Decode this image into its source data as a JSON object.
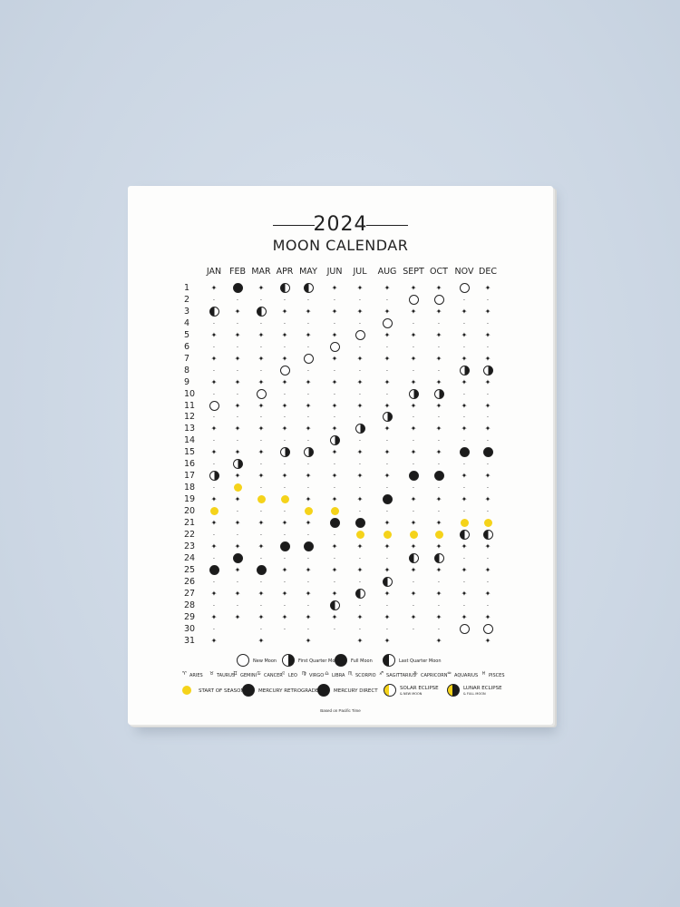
{
  "title": "2024",
  "subtitle": "MOON CALENDAR",
  "months": [
    "JAN",
    "FEB",
    "MAR",
    "APR",
    "MAY",
    "JUN",
    "JUL",
    "AUG",
    "SEPT",
    "OCT",
    "NOV",
    "DEC"
  ],
  "days": [
    "1",
    "2",
    "3",
    "4",
    "5",
    "6",
    "7",
    "8",
    "9",
    "10",
    "11",
    "12",
    "13",
    "14",
    "15",
    "16",
    "17",
    "18",
    "19",
    "20",
    "21",
    "22",
    "23",
    "24",
    "25",
    "26",
    "27",
    "28",
    "29",
    "30",
    "31"
  ],
  "phase_legend": [
    {
      "label": "New Moon",
      "phase": "new"
    },
    {
      "label": "First Quarter Moon",
      "phase": "fq"
    },
    {
      "label": "Full Moon",
      "phase": "full"
    },
    {
      "label": "Last Quarter Moon",
      "phase": "lq"
    }
  ],
  "zodiac_legend": [
    "ARIES",
    "TAURUS",
    "GEMINI",
    "CANCER",
    "LEO",
    "VIRGO",
    "LIBRA",
    "SCORPIO",
    "SAGITTARIUS",
    "CAPRICORN",
    "AQUARIUS",
    "PISCES"
  ],
  "zodiac_glyphs": [
    "♈",
    "♉",
    "♊",
    "♋",
    "♌",
    "♍",
    "♎",
    "♏",
    "♐",
    "♑",
    "♒",
    "♓"
  ],
  "event_legend": [
    {
      "label": "START OF SEASON"
    },
    {
      "label": "MERCURY RETROGRADE"
    },
    {
      "label": "MERCURY DIRECT"
    },
    {
      "label": "SOLAR ECLIPSE",
      "sub": "& NEW MOON"
    },
    {
      "label": "LUNAR ECLIPSE",
      "sub": "& FULL MOON"
    }
  ],
  "footnote": "Based on Pacific Time",
  "colors": {
    "accent": "#f5d31a",
    "ink": "#1b1b1b",
    "paper": "#fdfdfc",
    "wall": "#cfd9e6"
  },
  "events": [
    {
      "m": 0,
      "d": 3,
      "t": "lq"
    },
    {
      "m": 0,
      "d": 11,
      "t": "new"
    },
    {
      "m": 0,
      "d": 17,
      "t": "fq"
    },
    {
      "m": 0,
      "d": 25,
      "t": "full"
    },
    {
      "m": 1,
      "d": 1,
      "t": "full"
    },
    {
      "m": 1,
      "d": 16,
      "t": "fq"
    },
    {
      "m": 1,
      "d": 24,
      "t": "full"
    },
    {
      "m": 2,
      "d": 3,
      "t": "lq"
    },
    {
      "m": 2,
      "d": 10,
      "t": "new"
    },
    {
      "m": 2,
      "d": 25,
      "t": "full"
    },
    {
      "m": 3,
      "d": 1,
      "t": "lq"
    },
    {
      "m": 3,
      "d": 8,
      "t": "new"
    },
    {
      "m": 3,
      "d": 15,
      "t": "fq"
    },
    {
      "m": 3,
      "d": 23,
      "t": "full"
    },
    {
      "m": 4,
      "d": 1,
      "t": "lq"
    },
    {
      "m": 4,
      "d": 7,
      "t": "new"
    },
    {
      "m": 4,
      "d": 15,
      "t": "fq"
    },
    {
      "m": 4,
      "d": 23,
      "t": "full"
    },
    {
      "m": 5,
      "d": 6,
      "t": "new"
    },
    {
      "m": 5,
      "d": 14,
      "t": "fq"
    },
    {
      "m": 5,
      "d": 21,
      "t": "full"
    },
    {
      "m": 5,
      "d": 28,
      "t": "lq"
    },
    {
      "m": 6,
      "d": 5,
      "t": "new"
    },
    {
      "m": 6,
      "d": 13,
      "t": "fq"
    },
    {
      "m": 6,
      "d": 21,
      "t": "full"
    },
    {
      "m": 6,
      "d": 27,
      "t": "lq"
    },
    {
      "m": 7,
      "d": 4,
      "t": "new"
    },
    {
      "m": 7,
      "d": 12,
      "t": "fq"
    },
    {
      "m": 7,
      "d": 19,
      "t": "full"
    },
    {
      "m": 7,
      "d": 26,
      "t": "lq"
    },
    {
      "m": 8,
      "d": 2,
      "t": "new"
    },
    {
      "m": 8,
      "d": 10,
      "t": "fq"
    },
    {
      "m": 8,
      "d": 17,
      "t": "full"
    },
    {
      "m": 8,
      "d": 24,
      "t": "lq"
    },
    {
      "m": 9,
      "d": 2,
      "t": "new"
    },
    {
      "m": 9,
      "d": 10,
      "t": "fq"
    },
    {
      "m": 9,
      "d": 17,
      "t": "full"
    },
    {
      "m": 9,
      "d": 24,
      "t": "lq"
    },
    {
      "m": 10,
      "d": 1,
      "t": "new"
    },
    {
      "m": 10,
      "d": 8,
      "t": "fq"
    },
    {
      "m": 10,
      "d": 15,
      "t": "full"
    },
    {
      "m": 10,
      "d": 22,
      "t": "lq"
    },
    {
      "m": 10,
      "d": 30,
      "t": "new"
    },
    {
      "m": 11,
      "d": 8,
      "t": "fq"
    },
    {
      "m": 11,
      "d": 15,
      "t": "full"
    },
    {
      "m": 11,
      "d": 22,
      "t": "lq"
    },
    {
      "m": 11,
      "d": 30,
      "t": "new"
    }
  ],
  "highlights": [
    {
      "m": 0,
      "d": 20
    },
    {
      "m": 1,
      "d": 18
    },
    {
      "m": 2,
      "d": 19
    },
    {
      "m": 3,
      "d": 19
    },
    {
      "m": 4,
      "d": 20
    },
    {
      "m": 5,
      "d": 20
    },
    {
      "m": 6,
      "d": 22
    },
    {
      "m": 7,
      "d": 22
    },
    {
      "m": 8,
      "d": 22
    },
    {
      "m": 9,
      "d": 22
    },
    {
      "m": 10,
      "d": 21
    },
    {
      "m": 11,
      "d": 21
    }
  ]
}
